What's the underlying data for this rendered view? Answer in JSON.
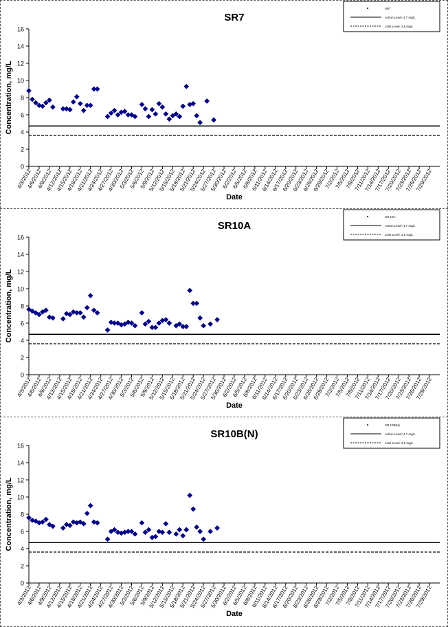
{
  "chart_data": [
    {
      "type": "scatter",
      "title": "SR7",
      "xlabel": "Date",
      "ylabel": "Concentration, mg/L",
      "ylim": [
        0,
        16
      ],
      "yticks": [
        "0",
        "2",
        "4",
        "6",
        "8",
        "10",
        "12",
        "14",
        "16"
      ],
      "grid": false,
      "legend_position": "top-right",
      "legend": [
        "SR7",
        "Action Level: 4.7 mg/L",
        "Limit Level: 3.6 mg/L"
      ],
      "date_labels": [
        "4/3/2012",
        "4/6/2012",
        "4/9/2012",
        "4/12/2012",
        "4/15/2012",
        "4/18/2012",
        "4/21/2012",
        "4/24/2012",
        "4/27/2012",
        "4/30/2012",
        "5/3/2012",
        "5/6/2012",
        "5/9/2012",
        "5/12/2012",
        "5/15/2012",
        "5/18/2012",
        "5/21/2012",
        "5/24/2012",
        "5/27/2012",
        "5/30/2012",
        "6/2/2012",
        "6/5/2012",
        "6/8/2012",
        "6/11/2012",
        "6/14/2012",
        "6/17/2012",
        "6/20/2012",
        "6/23/2012",
        "6/26/2012",
        "6/29/2012",
        "7/2/2012",
        "7/5/2012",
        "7/8/2012",
        "7/11/2012",
        "7/14/2012",
        "7/17/2012",
        "7/20/2012",
        "7/23/2012",
        "7/26/2012",
        "7/29/2012"
      ],
      "reference_lines": [
        {
          "name": "Action Level: 4.7 mg/L",
          "value": 4.7,
          "style": "solid"
        },
        {
          "name": "Limit Level: 3.6 mg/L",
          "value": 3.6,
          "style": "dashed"
        }
      ],
      "series": [
        {
          "name": "SR7",
          "color": "#00008b",
          "points": [
            {
              "x": "2012-04-03",
              "y": 8.8
            },
            {
              "x": "2012-04-04",
              "y": 7.8
            },
            {
              "x": "2012-04-05",
              "y": 7.4
            },
            {
              "x": "2012-04-06",
              "y": 7.1
            },
            {
              "x": "2012-04-07",
              "y": 7.0
            },
            {
              "x": "2012-04-08",
              "y": 7.4
            },
            {
              "x": "2012-04-09",
              "y": 7.7
            },
            {
              "x": "2012-04-10",
              "y": 6.9
            },
            {
              "x": "2012-04-13",
              "y": 6.7
            },
            {
              "x": "2012-04-14",
              "y": 6.7
            },
            {
              "x": "2012-04-15",
              "y": 6.6
            },
            {
              "x": "2012-04-16",
              "y": 7.5
            },
            {
              "x": "2012-04-17",
              "y": 8.1
            },
            {
              "x": "2012-04-18",
              "y": 7.3
            },
            {
              "x": "2012-04-19",
              "y": 6.5
            },
            {
              "x": "2012-04-20",
              "y": 7.1
            },
            {
              "x": "2012-04-21",
              "y": 7.1
            },
            {
              "x": "2012-04-22",
              "y": 9.0
            },
            {
              "x": "2012-04-23",
              "y": 9.0
            },
            {
              "x": "2012-04-26",
              "y": 5.8
            },
            {
              "x": "2012-04-27",
              "y": 6.2
            },
            {
              "x": "2012-04-28",
              "y": 6.5
            },
            {
              "x": "2012-04-29",
              "y": 6.0
            },
            {
              "x": "2012-04-30",
              "y": 6.3
            },
            {
              "x": "2012-05-01",
              "y": 6.4
            },
            {
              "x": "2012-05-02",
              "y": 6.0
            },
            {
              "x": "2012-05-03",
              "y": 6.0
            },
            {
              "x": "2012-05-04",
              "y": 5.8
            },
            {
              "x": "2012-05-06",
              "y": 7.2
            },
            {
              "x": "2012-05-07",
              "y": 6.7
            },
            {
              "x": "2012-05-08",
              "y": 5.8
            },
            {
              "x": "2012-05-09",
              "y": 6.6
            },
            {
              "x": "2012-05-10",
              "y": 6.1
            },
            {
              "x": "2012-05-11",
              "y": 7.3
            },
            {
              "x": "2012-05-12",
              "y": 6.9
            },
            {
              "x": "2012-05-13",
              "y": 6.1
            },
            {
              "x": "2012-05-14",
              "y": 5.5
            },
            {
              "x": "2012-05-15",
              "y": 5.9
            },
            {
              "x": "2012-05-16",
              "y": 6.1
            },
            {
              "x": "2012-05-17",
              "y": 5.8
            },
            {
              "x": "2012-05-18",
              "y": 7.0
            },
            {
              "x": "2012-05-19",
              "y": 9.3
            },
            {
              "x": "2012-05-20",
              "y": 7.2
            },
            {
              "x": "2012-05-21",
              "y": 7.3
            },
            {
              "x": "2012-05-22",
              "y": 5.9
            },
            {
              "x": "2012-05-23",
              "y": 5.1
            },
            {
              "x": "2012-05-25",
              "y": 7.6
            },
            {
              "x": "2012-05-27",
              "y": 5.4
            }
          ]
        }
      ]
    },
    {
      "type": "scatter",
      "title": "SR10A",
      "xlabel": "Date",
      "ylabel": "Concentration, mg/L",
      "ylim": [
        0,
        16
      ],
      "yticks": [
        "0",
        "2",
        "4",
        "6",
        "8",
        "10",
        "12",
        "14",
        "16"
      ],
      "grid": false,
      "legend_position": "top-right",
      "legend": [
        "SR 10A",
        "Action Level: 4.7 mg/L",
        "Limit Level: 3.6 mg/L"
      ],
      "date_labels": [
        "4/3/2012",
        "4/6/2012",
        "4/9/2012",
        "4/12/2012",
        "4/15/2012",
        "4/18/2012",
        "4/21/2012",
        "4/24/2012",
        "4/27/2012",
        "4/30/2012",
        "5/3/2012",
        "5/6/2012",
        "5/9/2012",
        "5/12/2012",
        "5/15/2012",
        "5/18/2012",
        "5/21/2012",
        "5/24/2012",
        "5/27/2012",
        "5/30/2012",
        "6/2/2012",
        "6/5/2012",
        "6/8/2012",
        "6/11/2012",
        "6/14/2012",
        "6/17/2012",
        "6/20/2012",
        "6/23/2012",
        "6/26/2012",
        "6/29/2012",
        "7/2/2012",
        "7/5/2012",
        "7/8/2012",
        "7/11/2012",
        "7/14/2012",
        "7/17/2012",
        "7/20/2012",
        "7/23/2012",
        "7/26/2012",
        "7/29/2012"
      ],
      "reference_lines": [
        {
          "name": "Action Level: 4.7 mg/L",
          "value": 4.7,
          "style": "solid"
        },
        {
          "name": "Limit Level: 3.6 mg/L",
          "value": 3.6,
          "style": "dashed"
        }
      ],
      "series": [
        {
          "name": "SR 10A",
          "color": "#00008b",
          "points": [
            {
              "x": "2012-04-03",
              "y": 7.6
            },
            {
              "x": "2012-04-04",
              "y": 7.4
            },
            {
              "x": "2012-04-05",
              "y": 7.2
            },
            {
              "x": "2012-04-06",
              "y": 7.0
            },
            {
              "x": "2012-04-07",
              "y": 7.3
            },
            {
              "x": "2012-04-08",
              "y": 7.5
            },
            {
              "x": "2012-04-09",
              "y": 6.7
            },
            {
              "x": "2012-04-10",
              "y": 6.6
            },
            {
              "x": "2012-04-13",
              "y": 6.5
            },
            {
              "x": "2012-04-14",
              "y": 7.1
            },
            {
              "x": "2012-04-15",
              "y": 7.0
            },
            {
              "x": "2012-04-16",
              "y": 7.3
            },
            {
              "x": "2012-04-17",
              "y": 7.2
            },
            {
              "x": "2012-04-18",
              "y": 7.2
            },
            {
              "x": "2012-04-19",
              "y": 6.7
            },
            {
              "x": "2012-04-20",
              "y": 7.8
            },
            {
              "x": "2012-04-21",
              "y": 9.2
            },
            {
              "x": "2012-04-22",
              "y": 7.5
            },
            {
              "x": "2012-04-23",
              "y": 7.2
            },
            {
              "x": "2012-04-26",
              "y": 5.2
            },
            {
              "x": "2012-04-27",
              "y": 6.1
            },
            {
              "x": "2012-04-28",
              "y": 6.0
            },
            {
              "x": "2012-04-29",
              "y": 6.0
            },
            {
              "x": "2012-04-30",
              "y": 5.8
            },
            {
              "x": "2012-05-01",
              "y": 5.9
            },
            {
              "x": "2012-05-02",
              "y": 6.1
            },
            {
              "x": "2012-05-03",
              "y": 6.0
            },
            {
              "x": "2012-05-04",
              "y": 5.7
            },
            {
              "x": "2012-05-06",
              "y": 7.2
            },
            {
              "x": "2012-05-07",
              "y": 5.9
            },
            {
              "x": "2012-05-08",
              "y": 6.2
            },
            {
              "x": "2012-05-09",
              "y": 5.5
            },
            {
              "x": "2012-05-10",
              "y": 5.5
            },
            {
              "x": "2012-05-11",
              "y": 6.0
            },
            {
              "x": "2012-05-12",
              "y": 6.3
            },
            {
              "x": "2012-05-13",
              "y": 6.4
            },
            {
              "x": "2012-05-14",
              "y": 6.0
            },
            {
              "x": "2012-05-16",
              "y": 5.7
            },
            {
              "x": "2012-05-17",
              "y": 5.9
            },
            {
              "x": "2012-05-18",
              "y": 5.6
            },
            {
              "x": "2012-05-19",
              "y": 5.6
            },
            {
              "x": "2012-05-20",
              "y": 9.8
            },
            {
              "x": "2012-05-21",
              "y": 8.3
            },
            {
              "x": "2012-05-22",
              "y": 8.3
            },
            {
              "x": "2012-05-23",
              "y": 6.6
            },
            {
              "x": "2012-05-24",
              "y": 5.7
            },
            {
              "x": "2012-05-26",
              "y": 5.9
            },
            {
              "x": "2012-05-28",
              "y": 6.4
            }
          ]
        }
      ]
    },
    {
      "type": "scatter",
      "title": "SR10B(N)",
      "xlabel": "Date",
      "ylabel": "Concentration, mg/L",
      "ylim": [
        0,
        16
      ],
      "yticks": [
        "0",
        "2",
        "4",
        "6",
        "8",
        "10",
        "12",
        "14",
        "16"
      ],
      "grid": false,
      "legend_position": "top-right",
      "legend": [
        "SR 10B(N)",
        "Action Level: 4.7 mg/L",
        "Limit Level: 3.6 mg/L"
      ],
      "date_labels": [
        "4/3/2012",
        "4/6/2012",
        "4/9/2012",
        "4/12/2012",
        "4/15/2012",
        "4/18/2012",
        "4/21/2012",
        "4/24/2012",
        "4/27/2012",
        "4/30/2012",
        "5/3/2012",
        "5/6/2012",
        "5/9/2012",
        "5/12/2012",
        "5/15/2012",
        "5/18/2012",
        "5/21/2012",
        "5/24/2012",
        "5/27/2012",
        "5/30/2012",
        "6/2/2012",
        "6/5/2012",
        "6/8/2012",
        "6/11/2012",
        "6/14/2012",
        "6/17/2012",
        "6/20/2012",
        "6/23/2012",
        "6/26/2012",
        "6/29/2012",
        "7/2/2012",
        "7/5/2012",
        "7/8/2012",
        "7/11/2012",
        "7/14/2012",
        "7/17/2012",
        "7/20/2012",
        "7/23/2012",
        "7/26/2012",
        "7/29/2012"
      ],
      "reference_lines": [
        {
          "name": "Action Level: 4.7 mg/L",
          "value": 4.7,
          "style": "solid"
        },
        {
          "name": "Limit Level: 3.6 mg/L",
          "value": 3.6,
          "style": "dashed"
        }
      ],
      "series": [
        {
          "name": "SR 10B(N)",
          "color": "#00008b",
          "points": [
            {
              "x": "2012-04-03",
              "y": 7.6
            },
            {
              "x": "2012-04-04",
              "y": 7.3
            },
            {
              "x": "2012-04-05",
              "y": 7.2
            },
            {
              "x": "2012-04-06",
              "y": 7.0
            },
            {
              "x": "2012-04-07",
              "y": 7.1
            },
            {
              "x": "2012-04-08",
              "y": 7.4
            },
            {
              "x": "2012-04-09",
              "y": 6.8
            },
            {
              "x": "2012-04-10",
              "y": 6.6
            },
            {
              "x": "2012-04-13",
              "y": 6.4
            },
            {
              "x": "2012-04-14",
              "y": 6.8
            },
            {
              "x": "2012-04-15",
              "y": 6.7
            },
            {
              "x": "2012-04-16",
              "y": 7.1
            },
            {
              "x": "2012-04-17",
              "y": 7.0
            },
            {
              "x": "2012-04-18",
              "y": 7.1
            },
            {
              "x": "2012-04-19",
              "y": 6.9
            },
            {
              "x": "2012-04-20",
              "y": 8.1
            },
            {
              "x": "2012-04-21",
              "y": 9.0
            },
            {
              "x": "2012-04-22",
              "y": 7.1
            },
            {
              "x": "2012-04-23",
              "y": 7.0
            },
            {
              "x": "2012-04-26",
              "y": 5.1
            },
            {
              "x": "2012-04-27",
              "y": 6.0
            },
            {
              "x": "2012-04-28",
              "y": 6.2
            },
            {
              "x": "2012-04-29",
              "y": 5.9
            },
            {
              "x": "2012-04-30",
              "y": 5.8
            },
            {
              "x": "2012-05-01",
              "y": 5.9
            },
            {
              "x": "2012-05-02",
              "y": 6.0
            },
            {
              "x": "2012-05-03",
              "y": 6.0
            },
            {
              "x": "2012-05-04",
              "y": 5.7
            },
            {
              "x": "2012-05-06",
              "y": 7.0
            },
            {
              "x": "2012-05-07",
              "y": 5.9
            },
            {
              "x": "2012-05-08",
              "y": 6.2
            },
            {
              "x": "2012-05-09",
              "y": 5.3
            },
            {
              "x": "2012-05-10",
              "y": 5.4
            },
            {
              "x": "2012-05-11",
              "y": 6.0
            },
            {
              "x": "2012-05-12",
              "y": 5.9
            },
            {
              "x": "2012-05-13",
              "y": 6.9
            },
            {
              "x": "2012-05-14",
              "y": 5.9
            },
            {
              "x": "2012-05-16",
              "y": 5.7
            },
            {
              "x": "2012-05-17",
              "y": 6.2
            },
            {
              "x": "2012-05-18",
              "y": 5.5
            },
            {
              "x": "2012-05-19",
              "y": 6.2
            },
            {
              "x": "2012-05-20",
              "y": 10.2
            },
            {
              "x": "2012-05-21",
              "y": 8.6
            },
            {
              "x": "2012-05-22",
              "y": 6.5
            },
            {
              "x": "2012-05-23",
              "y": 6.0
            },
            {
              "x": "2012-05-24",
              "y": 5.1
            },
            {
              "x": "2012-05-26",
              "y": 6.0
            },
            {
              "x": "2012-05-28",
              "y": 6.4
            }
          ]
        }
      ]
    }
  ]
}
